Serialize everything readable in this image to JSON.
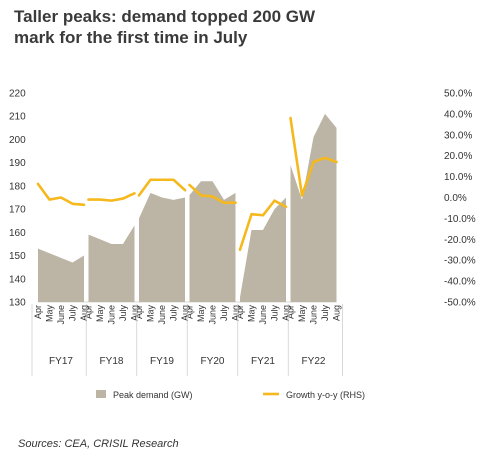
{
  "chart_data": {
    "type": "area",
    "title_lines": [
      "Taller peaks: demand topped 200 GW",
      "mark for the first time in July"
    ],
    "source": "Sources: CEA, CRISIL Research",
    "groups": [
      {
        "label": "FY17",
        "months": [
          "Apr",
          "May",
          "June",
          "July",
          "Aug"
        ]
      },
      {
        "label": "FY18",
        "months": [
          "Apr",
          "May",
          "June",
          "July",
          "Aug"
        ]
      },
      {
        "label": "FY19",
        "months": [
          "Apr",
          "May",
          "June",
          "July",
          "Aug"
        ]
      },
      {
        "label": "FY20",
        "months": [
          "Apr",
          "May",
          "June",
          "July",
          "Aug"
        ]
      },
      {
        "label": "FY21",
        "months": [
          "Apr",
          "May",
          "June",
          "July",
          "Aug"
        ]
      },
      {
        "label": "FY22",
        "months": [
          "Apr",
          "May",
          "June",
          "July",
          "Aug"
        ]
      }
    ],
    "y_left": {
      "min": 130,
      "max": 220,
      "ticks": [
        130,
        140,
        150,
        160,
        170,
        180,
        190,
        200,
        210,
        220
      ]
    },
    "y_right": {
      "min": -50,
      "max": 50,
      "ticks": [
        "50.0%",
        "40.0%",
        "30.0%",
        "20.0%",
        "10.0%",
        "0.0%",
        "-10.0%",
        "-20.0%",
        "-30.0%",
        "-40.0%",
        "-50.0%"
      ],
      "tick_values": [
        50,
        40,
        30,
        20,
        10,
        0,
        -10,
        -20,
        -30,
        -40,
        -50
      ]
    },
    "series": [
      {
        "name": "Peak demand (GW)",
        "axis": "left",
        "type": "area",
        "color": "#bcb4a5",
        "values": [
          [
            153,
            151,
            149,
            147,
            150
          ],
          [
            159,
            157,
            155,
            155,
            163
          ],
          [
            166,
            177,
            175,
            174,
            175
          ],
          [
            176,
            182,
            182,
            174,
            177
          ],
          [
            132,
            161,
            161,
            170,
            175
          ],
          [
            189,
            174,
            201,
            211,
            205
          ]
        ]
      },
      {
        "name": "Growth y-o-y (RHS)",
        "axis": "right",
        "type": "line",
        "color": "#f5b81d",
        "values": [
          [
            6.5,
            -1,
            0,
            -3,
            -3.5
          ],
          [
            -1,
            -1,
            -1.5,
            -0.5,
            2
          ],
          [
            1,
            8.5,
            8.5,
            8.5,
            3.5
          ],
          [
            6,
            1,
            0.5,
            -2.5,
            -2.5
          ],
          [
            -25,
            -8,
            -8.5,
            -1.5,
            -4.5
          ],
          [
            38,
            1,
            17,
            19,
            17
          ]
        ]
      }
    ],
    "legend": {
      "position": "bottom"
    }
  }
}
